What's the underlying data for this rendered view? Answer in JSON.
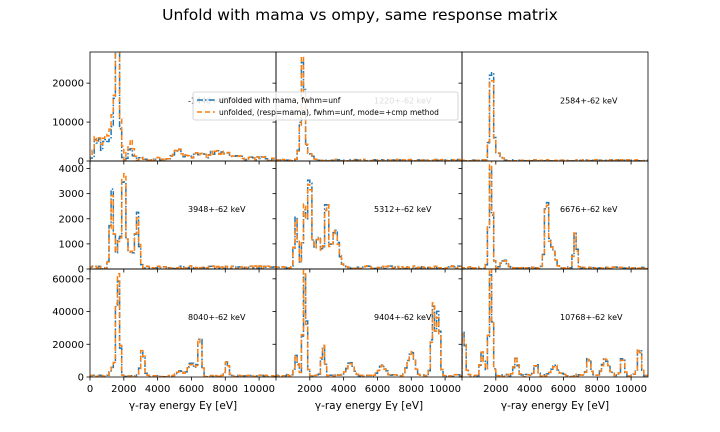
{
  "figure": {
    "title": "Unfold with mama vs ompy, same response matrix",
    "xlabel": "γ-ray energy Eγ [eV]"
  },
  "legend": {
    "entries": [
      {
        "label": "unfolded with mama, fwhm=unf",
        "color": "#1f77b4",
        "dash": "dashdot"
      },
      {
        "label": "unfolded, (resp=mama), fwhm=unf, mode=+cmp method",
        "color": "#ff7f0e",
        "dash": "dashed"
      }
    ]
  },
  "chart_data": {
    "type": "line",
    "grid": false,
    "x_range": [
      0,
      11000
    ],
    "bin_width": 125,
    "series_names": [
      "unfolded with mama, fwhm=unf",
      "unfolded, (resp=mama), fwhm=unf, mode=+cmp method"
    ],
    "panels": [
      {
        "label": "-1440+-62 keV",
        "ylim": [
          0,
          28000
        ],
        "yticks": [
          0,
          10000,
          20000
        ],
        "ytick_labels": [
          "0",
          "10000",
          "20000"
        ],
        "xtick_labels": [],
        "peaks": [
          [
            1450,
            8000,
            1
          ],
          [
            1550,
            9000,
            1
          ],
          [
            1650,
            25500,
            1
          ],
          [
            2400,
            3000,
            1
          ],
          [
            5200,
            2000,
            3
          ],
          [
            6400,
            1400,
            3
          ],
          [
            7400,
            1600,
            3
          ],
          [
            8200,
            1300,
            3
          ]
        ],
        "floor": {
          "from": 300,
          "to": 1400,
          "level": 6000
        },
        "noise": 1200,
        "orange_bias": 3000
      },
      {
        "label": "1220+-62 keV",
        "ylim": [
          0,
          28000
        ],
        "yticks": [
          0,
          10000,
          20000
        ],
        "ytick_labels": [],
        "xtick_labels": [],
        "peaks": [
          [
            1600,
            26000,
            1
          ],
          [
            1400,
            3000,
            1
          ],
          [
            2000,
            1500,
            2
          ]
        ],
        "floor": {
          "from": 0,
          "to": 0,
          "level": 0
        },
        "noise": 400,
        "orange_bias": 0
      },
      {
        "label": "2584+-62 keV",
        "ylim": [
          0,
          28000
        ],
        "yticks": [
          0,
          10000,
          20000
        ],
        "ytick_labels": [],
        "xtick_labels": [],
        "peaks": [
          [
            1750,
            26500,
            1
          ],
          [
            2100,
            2000,
            2
          ]
        ],
        "floor": {
          "from": 0,
          "to": 0,
          "level": 0
        },
        "noise": 300,
        "orange_bias": 0
      },
      {
        "label": "3948+-62 keV",
        "ylim": [
          0,
          4300
        ],
        "yticks": [
          0,
          1000,
          2000,
          3000,
          4000
        ],
        "ytick_labels": [
          "0",
          "1000",
          "2000",
          "3000",
          "4000"
        ],
        "xtick_labels": [],
        "peaks": [
          [
            1300,
            3200,
            1
          ],
          [
            1700,
            1100,
            1
          ],
          [
            2000,
            4000,
            1
          ],
          [
            2800,
            2100,
            1
          ],
          [
            2400,
            700,
            2
          ]
        ],
        "floor": {
          "from": 0,
          "to": 0,
          "level": 0
        },
        "noise": 120,
        "orange_bias": 0
      },
      {
        "label": "5312+-62 keV",
        "ylim": [
          0,
          4300
        ],
        "yticks": [
          0,
          1000,
          2000,
          3000,
          4000
        ],
        "ytick_labels": [],
        "xtick_labels": [],
        "peaks": [
          [
            1200,
            2000,
            1
          ],
          [
            1700,
            2300,
            1
          ],
          [
            2000,
            4000,
            1
          ],
          [
            3000,
            2800,
            1
          ],
          [
            3500,
            1500,
            2
          ],
          [
            2500,
            1200,
            2
          ]
        ],
        "floor": {
          "from": 0,
          "to": 0,
          "level": 0
        },
        "noise": 120,
        "orange_bias": 0
      },
      {
        "label": "6676+-62 keV",
        "ylim": [
          0,
          4300
        ],
        "yticks": [
          0,
          1000,
          2000,
          3000,
          4000
        ],
        "ytick_labels": [],
        "xtick_labels": [],
        "peaks": [
          [
            1700,
            4000,
            1
          ],
          [
            5000,
            2700,
            1
          ],
          [
            5300,
            800,
            2
          ],
          [
            6700,
            1400,
            1
          ],
          [
            2500,
            300,
            2
          ]
        ],
        "floor": {
          "from": 0,
          "to": 0,
          "level": 0
        },
        "noise": 80,
        "orange_bias": 0
      },
      {
        "label": "8040+-62 keV",
        "ylim": [
          0,
          66000
        ],
        "yticks": [
          0,
          20000,
          40000,
          60000
        ],
        "ytick_labels": [
          "0",
          "20000",
          "40000",
          "60000"
        ],
        "xtick_labels": [
          "0",
          "2000",
          "4000",
          "6000",
          "8000",
          "10000"
        ],
        "peaks": [
          [
            1650,
            62000,
            1
          ],
          [
            1300,
            5000,
            1
          ],
          [
            3100,
            16000,
            1
          ],
          [
            5300,
            3000,
            2
          ],
          [
            6500,
            27000,
            1
          ],
          [
            6000,
            8000,
            2
          ],
          [
            8100,
            9000,
            1
          ]
        ],
        "floor": {
          "from": 0,
          "to": 0,
          "level": 0
        },
        "noise": 1200,
        "orange_bias": 0
      },
      {
        "label": "9404+-62 keV",
        "ylim": [
          0,
          66000
        ],
        "yticks": [
          0,
          20000,
          40000,
          60000
        ],
        "ytick_labels": [],
        "xtick_labels": [
          "2000",
          "4000",
          "6000",
          "8000",
          "10000"
        ],
        "peaks": [
          [
            1200,
            12000,
            1
          ],
          [
            1700,
            63000,
            1
          ],
          [
            2800,
            18000,
            1
          ],
          [
            4400,
            8000,
            2
          ],
          [
            6300,
            6000,
            2
          ],
          [
            8000,
            14000,
            2
          ],
          [
            9300,
            42000,
            1
          ],
          [
            9600,
            40000,
            1
          ]
        ],
        "floor": {
          "from": 0,
          "to": 0,
          "level": 0
        },
        "noise": 1500,
        "orange_bias": 0
      },
      {
        "label": "10768+-62 keV",
        "ylim": [
          0,
          66000
        ],
        "yticks": [
          0,
          20000,
          40000,
          60000
        ],
        "ytick_labels": [],
        "xtick_labels": [
          "2000",
          "4000",
          "6000",
          "8000",
          "10000"
        ],
        "peaks": [
          [
            100,
            28000,
            1
          ],
          [
            1200,
            15000,
            1
          ],
          [
            1700,
            63000,
            1
          ],
          [
            3200,
            10000,
            1
          ],
          [
            4400,
            8000,
            1
          ],
          [
            5500,
            6000,
            2
          ],
          [
            7500,
            12000,
            1
          ],
          [
            8500,
            10000,
            2
          ],
          [
            9500,
            12000,
            1
          ],
          [
            10500,
            18000,
            1
          ]
        ],
        "floor": {
          "from": 0,
          "to": 0,
          "level": 0
        },
        "noise": 1800,
        "orange_bias": 0
      }
    ]
  }
}
